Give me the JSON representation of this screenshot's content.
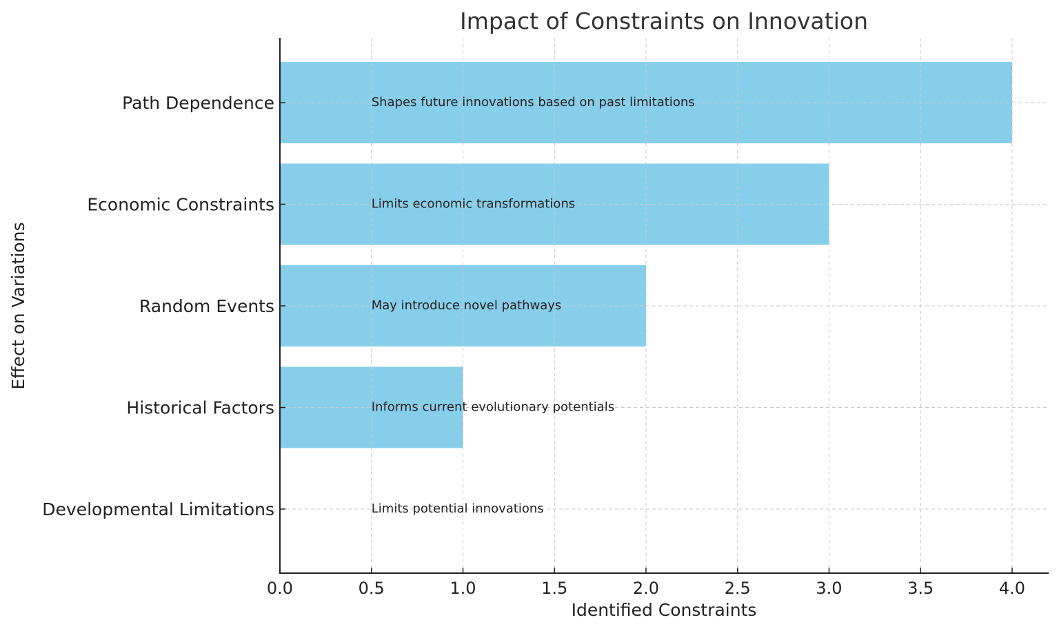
{
  "chart_data": {
    "type": "bar",
    "orientation": "horizontal",
    "title": "Impact of Constraints on Innovation",
    "xlabel": "Identified Constraints",
    "ylabel": "Effect on Variations",
    "categories": [
      "Developmental Limitations",
      "Historical Factors",
      "Random Events",
      "Economic Constraints",
      "Path Dependence"
    ],
    "values": [
      0,
      1,
      2,
      3,
      4
    ],
    "annotations": [
      "Limits potential innovations",
      "Informs current evolutionary potentials",
      "May introduce novel pathways",
      "Limits economic transformations",
      "Shapes future innovations based on past limitations"
    ],
    "annotation_x": 0.5,
    "xlim": [
      0,
      4.2
    ],
    "xticks": [
      "0.0",
      "0.5",
      "1.0",
      "1.5",
      "2.0",
      "2.5",
      "3.0",
      "3.5",
      "4.0"
    ],
    "grid": true,
    "bar_color": "#87CEEB"
  }
}
